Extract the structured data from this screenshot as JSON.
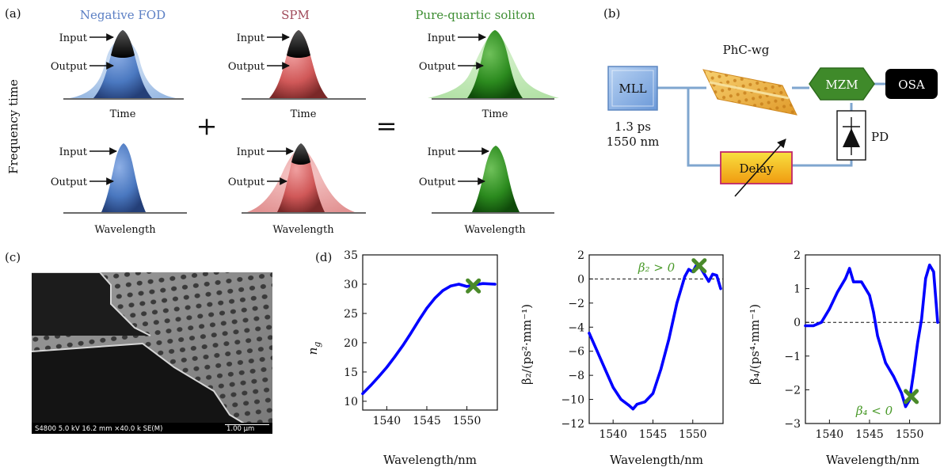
{
  "panel_a": {
    "tag": "(a)",
    "ylabel": "Frequency time",
    "col_titles": [
      "Negative FOD",
      "SPM",
      "Pure-quartic soliton"
    ],
    "title_colors": [
      "#5b7fc4",
      "#a04a5a",
      "#3e8e33"
    ],
    "input_label": "Input",
    "output_label": "Output",
    "time_label": "Time",
    "wavelength_label": "Wavelength",
    "plus": "+",
    "equals": "="
  },
  "panel_b": {
    "tag": "(b)",
    "mll": "MLL",
    "mll_spec_1": "1.3 ps",
    "mll_spec_2": "1550 nm",
    "phc": "PhC-wg",
    "mzm": "MZM",
    "osa": "OSA",
    "delay": "Delay",
    "pd": "PD",
    "colors": {
      "mll": "#8fb4e8",
      "mzm": "#3f8a2a",
      "osa": "#000000",
      "delay": "#f0c020",
      "fiber": "#7fa6cf"
    }
  },
  "panel_c": {
    "tag": "(c)",
    "caption": "S4800 5.0 kV 16.2 mm ×40.0 k SE(M)",
    "scale": "1.00 μm"
  },
  "panel_d": {
    "tag": "(d)",
    "xlabel": "Wavelength/nm",
    "ylabel_1": "n",
    "ylabel_1_sub": "g",
    "ylabel_2": "β₂/(ps²·mm⁻¹)",
    "ylabel_3": "β₄/(ps⁴·mm⁻¹)",
    "ann_2": "β₂ > 0",
    "ann_3": "β₄ < 0"
  },
  "chart_data": [
    {
      "type": "line",
      "x": [
        1537.0,
        1538.0,
        1539.0,
        1540.0,
        1541.0,
        1542.0,
        1543.0,
        1544.0,
        1545.0,
        1546.0,
        1547.0,
        1548.0,
        1549.0,
        1550.0,
        1551.0,
        1552.0,
        1553.5
      ],
      "series": [
        {
          "values": [
            11.3,
            12.7,
            14.2,
            15.8,
            17.6,
            19.5,
            21.6,
            23.8,
            25.9,
            27.6,
            28.9,
            29.7,
            30.0,
            29.6,
            29.9,
            30.1,
            30.0
          ],
          "color": "#0000ff"
        }
      ],
      "xlim": [
        1537,
        1553.8
      ],
      "ylim": [
        8.5,
        35
      ],
      "xticks": [
        1540,
        1545,
        1550
      ],
      "yticks": [
        10,
        15,
        20,
        25,
        30,
        35
      ],
      "marker": {
        "x": 1550.8,
        "y": 29.7,
        "color": "#4a8a2a"
      },
      "xlabel": "Wavelength/nm",
      "ylabel": "n_g"
    },
    {
      "type": "line",
      "x": [
        1537.0,
        1538.0,
        1539.0,
        1540.0,
        1541.0,
        1542.0,
        1542.5,
        1543.0,
        1544.0,
        1545.0,
        1546.0,
        1547.0,
        1548.0,
        1549.0,
        1549.5,
        1550.0,
        1550.5,
        1551.0,
        1552.0,
        1552.5,
        1553.0,
        1553.5
      ],
      "series": [
        {
          "values": [
            -4.5,
            -6.0,
            -7.5,
            -9.0,
            -10.0,
            -10.5,
            -10.8,
            -10.4,
            -10.2,
            -9.5,
            -7.5,
            -5.0,
            -2.0,
            0.2,
            0.8,
            0.6,
            1.2,
            0.9,
            -0.2,
            0.4,
            0.3,
            -0.8
          ],
          "color": "#0000ff"
        }
      ],
      "xlim": [
        1537,
        1553.8
      ],
      "ylim": [
        -12,
        2
      ],
      "xticks": [
        1540,
        1545,
        1550
      ],
      "yticks": [
        -12,
        -10,
        -8,
        -6,
        -4,
        -2,
        0,
        2
      ],
      "reference_line": 0,
      "marker": {
        "x": 1550.8,
        "y": 1.1,
        "color": "#4a8a2a"
      },
      "xlabel": "Wavelength/nm",
      "ylabel": "β₂/(ps²·mm⁻¹)"
    },
    {
      "type": "line",
      "x": [
        1537.0,
        1538.0,
        1539.0,
        1540.0,
        1541.0,
        1542.0,
        1542.5,
        1543.0,
        1544.0,
        1545.0,
        1545.5,
        1546.0,
        1547.0,
        1548.0,
        1549.0,
        1549.5,
        1550.0,
        1550.5,
        1551.0,
        1551.5,
        1552.0,
        1552.5,
        1553.0,
        1553.5
      ],
      "series": [
        {
          "values": [
            -0.1,
            -0.1,
            0.0,
            0.4,
            0.9,
            1.3,
            1.6,
            1.2,
            1.2,
            0.8,
            0.3,
            -0.4,
            -1.2,
            -1.6,
            -2.1,
            -2.5,
            -2.3,
            -1.5,
            -0.6,
            0.1,
            1.3,
            1.7,
            1.5,
            0.0
          ],
          "color": "#0000ff"
        }
      ],
      "xlim": [
        1537,
        1553.8
      ],
      "ylim": [
        -3,
        2
      ],
      "xticks": [
        1540,
        1545,
        1550
      ],
      "yticks": [
        -3,
        -2,
        -1,
        0,
        1,
        2
      ],
      "reference_line": 0,
      "marker": {
        "x": 1550.2,
        "y": -2.2,
        "color": "#4a8a2a"
      },
      "xlabel": "Wavelength/nm",
      "ylabel": "β₄/(ps⁴·mm⁻¹)"
    }
  ]
}
